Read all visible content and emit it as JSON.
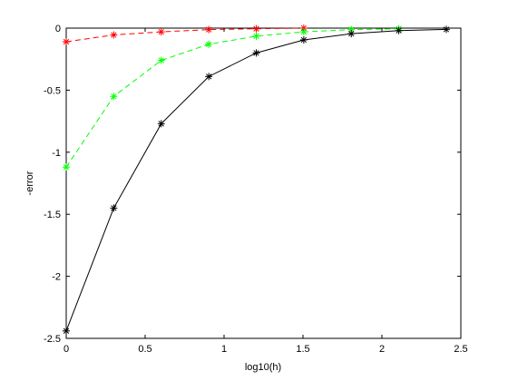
{
  "chart_data": {
    "type": "line",
    "title": "",
    "xlabel": "log10(h)",
    "ylabel": "-error",
    "xlim": [
      0,
      2.5
    ],
    "ylim": [
      -2.5,
      0
    ],
    "xticks": [
      0,
      0.5,
      1,
      1.5,
      2,
      2.5
    ],
    "xtick_labels": [
      "0",
      "0.5",
      "1",
      "1.5",
      "2",
      "2.5"
    ],
    "yticks": [
      0,
      -0.5,
      -1,
      -1.5,
      -2,
      -2.5
    ],
    "ytick_labels": [
      "0",
      "-0.5",
      "-1",
      "-1.5",
      "-2",
      "-2.5"
    ],
    "grid": false,
    "legend": "none",
    "series": [
      {
        "color": "#ff0000",
        "line_style": "dashed",
        "marker": "asterisk",
        "x": [
          0,
          0.301,
          0.602,
          0.903,
          1.204,
          1.505
        ],
        "y": [
          -0.11,
          -0.055,
          -0.03,
          -0.012,
          -0.005,
          0.0
        ]
      },
      {
        "color": "#00ff00",
        "line_style": "dashed",
        "marker": "asterisk",
        "x": [
          0,
          0.301,
          0.602,
          0.903,
          1.204,
          1.505,
          1.806,
          2.107
        ],
        "y": [
          -1.12,
          -0.55,
          -0.26,
          -0.13,
          -0.065,
          -0.03,
          -0.012,
          -0.005
        ]
      },
      {
        "color": "#000000",
        "line_style": "solid",
        "marker": "asterisk",
        "x": [
          0,
          0.301,
          0.602,
          0.903,
          1.204,
          1.505,
          1.806,
          2.107,
          2.408
        ],
        "y": [
          -2.44,
          -1.45,
          -0.77,
          -0.39,
          -0.2,
          -0.095,
          -0.045,
          -0.02,
          -0.01
        ]
      }
    ]
  }
}
